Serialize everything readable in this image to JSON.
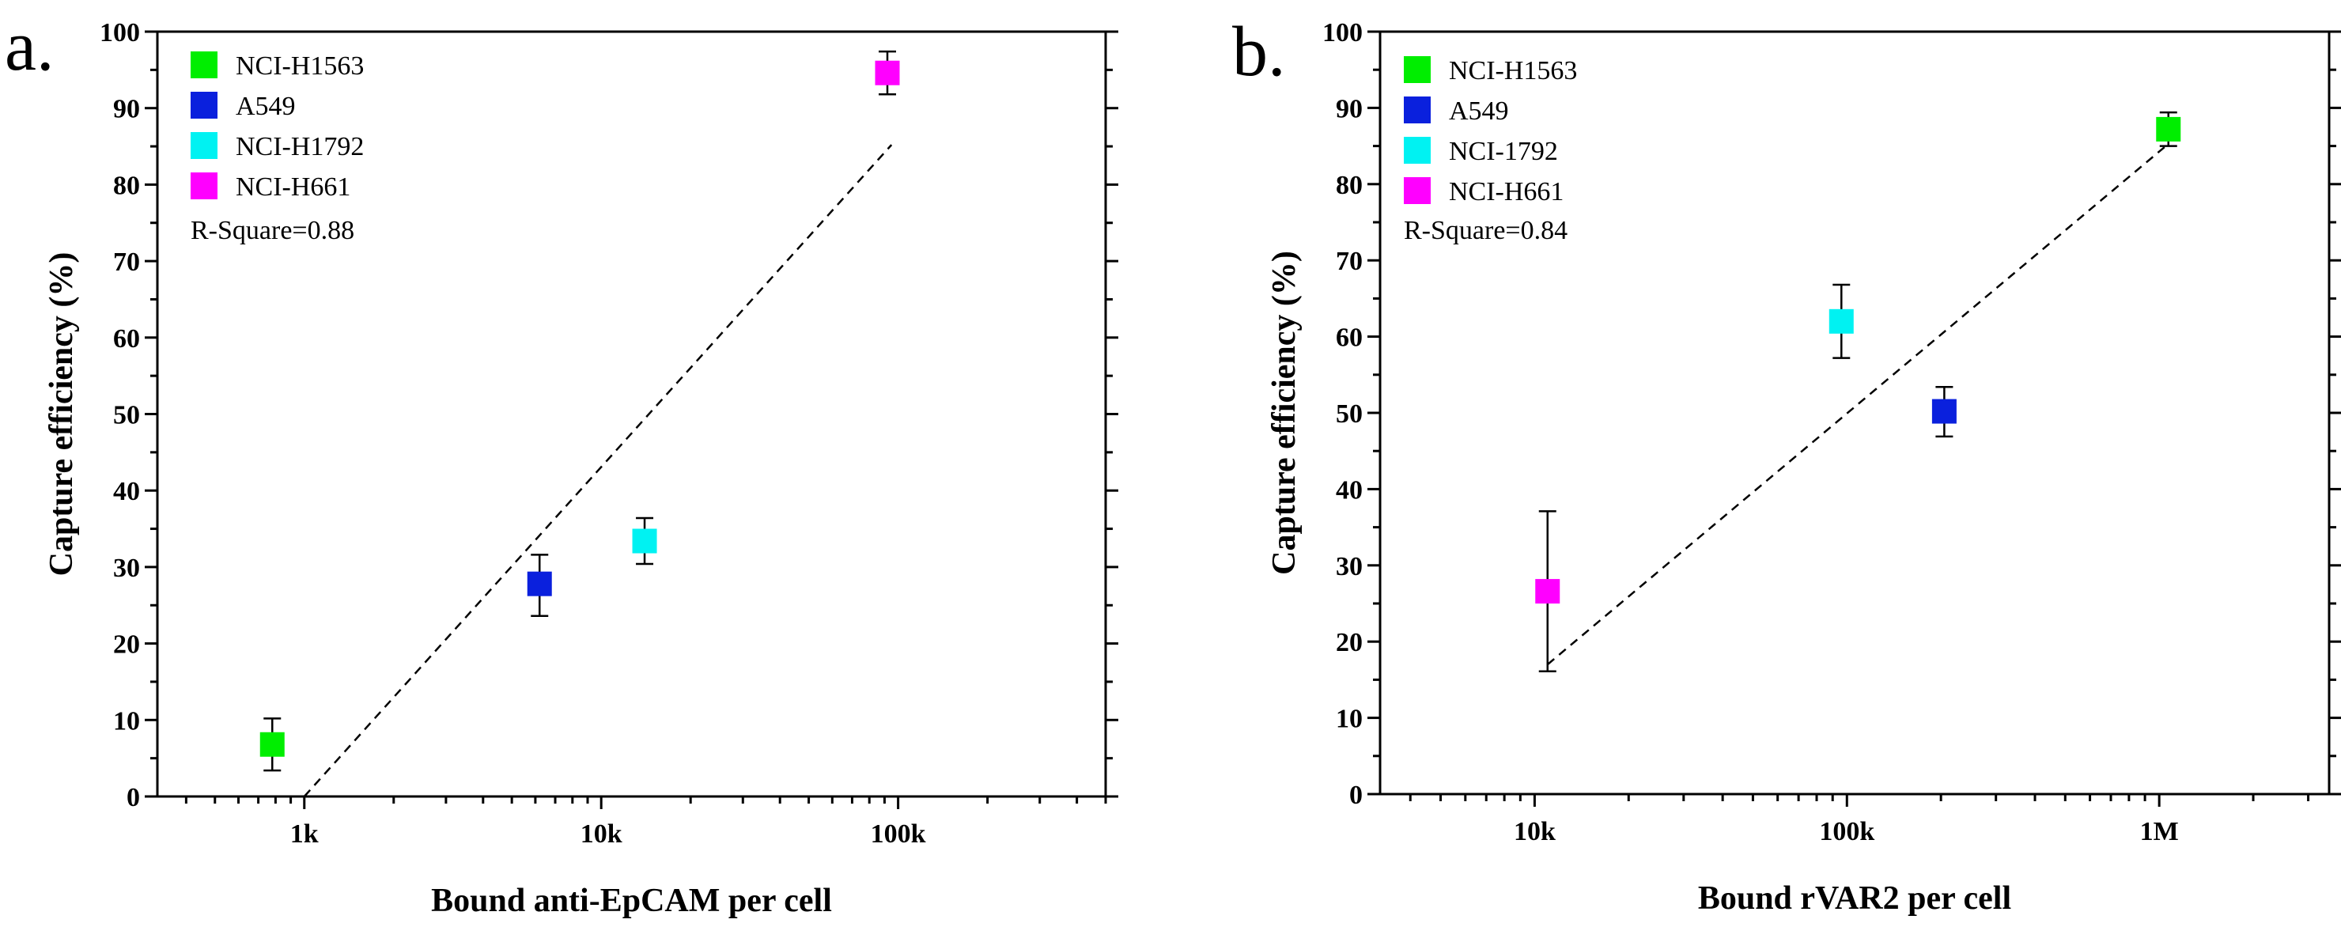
{
  "chart_data": [
    {
      "panel": "a.",
      "type": "scatter",
      "xscale": "log",
      "xlabel": "Bound anti-EpCAM per cell",
      "ylabel": "Capture efficiency (%)",
      "xlim": [
        320,
        500000
      ],
      "ylim": [
        0,
        100
      ],
      "xticks": [
        1000,
        10000,
        100000
      ],
      "xticklabels": [
        "1k",
        "10k",
        "100k"
      ],
      "yticks": [
        0,
        10,
        20,
        30,
        40,
        50,
        60,
        70,
        80,
        90,
        100
      ],
      "yticklabels": [
        "0",
        "10",
        "20",
        "30",
        "40",
        "50",
        "60",
        "70",
        "80",
        "90",
        "100"
      ],
      "legend_position": "top-left",
      "annotation": "R-Square=0.88",
      "series": [
        {
          "name": "NCI-H1563",
          "color": "#00ee00",
          "x": 780,
          "y": 6.8,
          "err_low": 3.4,
          "err_high": 3.4
        },
        {
          "name": "A549",
          "color": "#0a20dd",
          "x": 6200,
          "y": 27.8,
          "err_low": 4.2,
          "err_high": 3.8
        },
        {
          "name": "NCI-H1792",
          "color": "#00f2f2",
          "x": 14000,
          "y": 33.4,
          "err_low": 3.0,
          "err_high": 3.0
        },
        {
          "name": "NCI-H661",
          "color": "#ff00ff",
          "x": 92000,
          "y": 94.6,
          "err_low": 2.8,
          "err_high": 2.8
        }
      ],
      "fit_line": {
        "x": [
          1000,
          95000
        ],
        "y": [
          0,
          85.2
        ]
      }
    },
    {
      "panel": "b.",
      "type": "scatter",
      "xscale": "log",
      "xlabel": "Bound rVAR2 per cell",
      "ylabel": "Capture efficiency (%)",
      "xlim": [
        3200,
        3500000
      ],
      "ylim": [
        0,
        100
      ],
      "xticks": [
        10000,
        100000,
        1000000
      ],
      "xticklabels": [
        "10k",
        "100k",
        "1M"
      ],
      "yticks": [
        0,
        10,
        20,
        30,
        40,
        50,
        60,
        70,
        80,
        90,
        100
      ],
      "yticklabels": [
        "0",
        "10",
        "20",
        "30",
        "40",
        "50",
        "60",
        "70",
        "80",
        "90",
        "100"
      ],
      "legend_position": "top-left",
      "annotation": "R-Square=0.84",
      "series": [
        {
          "name": "NCI-H1563",
          "color": "#00ee00",
          "x": 1070000,
          "y": 87.2,
          "err_low": 2.2,
          "err_high": 2.2
        },
        {
          "name": "A549",
          "color": "#0a20dd",
          "x": 205000,
          "y": 50.2,
          "err_low": 3.3,
          "err_high": 3.2
        },
        {
          "name": "NCI-1792",
          "color": "#00f2f2",
          "x": 96000,
          "y": 62.0,
          "err_low": 4.8,
          "err_high": 4.8
        },
        {
          "name": "NCI-H661",
          "color": "#ff00ff",
          "x": 11000,
          "y": 26.6,
          "err_low": 10.5,
          "err_high": 10.5
        }
      ],
      "fit_line": {
        "x": [
          11000,
          1050000
        ],
        "y": [
          17.0,
          85.0
        ]
      }
    }
  ]
}
